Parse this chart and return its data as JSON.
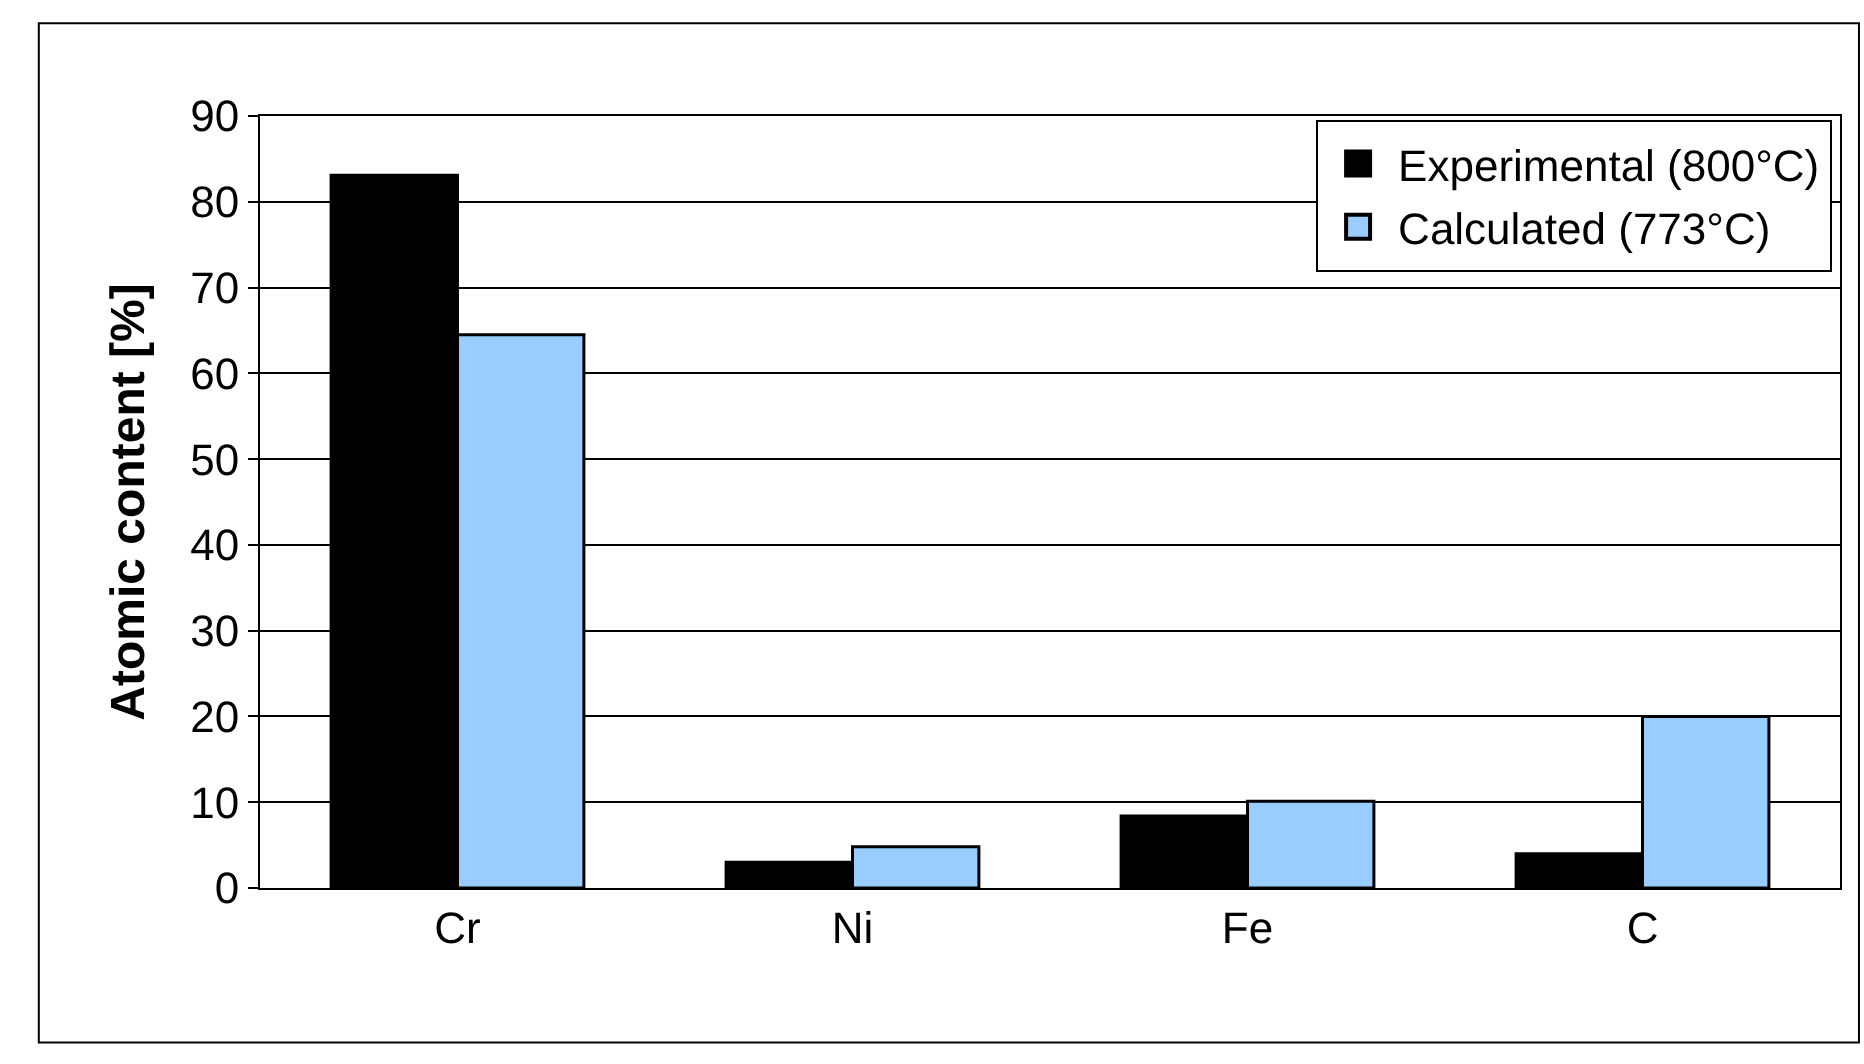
{
  "chart_data": {
    "type": "bar",
    "ylabel": "Atomic content [%]",
    "categories": [
      "Cr",
      "Ni",
      "Fe",
      "C"
    ],
    "series": [
      {
        "name": "Experimental (800°C)",
        "color": "#000000",
        "values": [
          83.1,
          3.0,
          8.4,
          4.0
        ]
      },
      {
        "name": "Calculated (773°C)",
        "color": "#99ccff",
        "values": [
          64.5,
          4.8,
          10.1,
          20.0
        ]
      }
    ],
    "ylim": [
      0,
      90
    ],
    "yticks": [
      0,
      10,
      20,
      30,
      40,
      50,
      60,
      70,
      80,
      90
    ],
    "grid": "y",
    "legend": "top right"
  }
}
